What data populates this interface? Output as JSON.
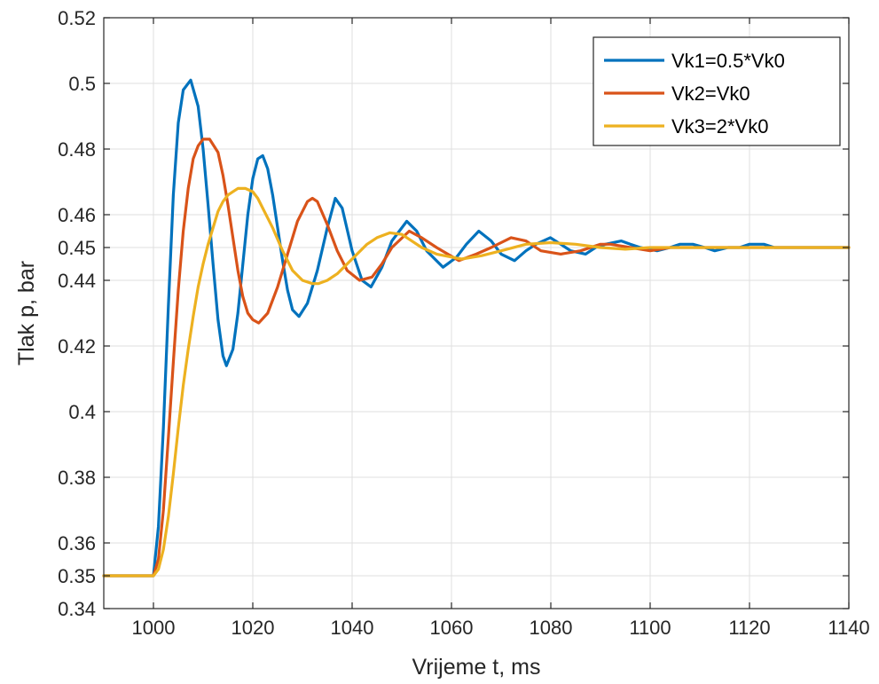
{
  "chart_data": {
    "type": "line",
    "title": "",
    "xlabel": "Vrijeme t, ms",
    "ylabel": "Tlak p, bar",
    "xlim": [
      990,
      1140
    ],
    "ylim": [
      0.34,
      0.52
    ],
    "xticks": [
      1000,
      1020,
      1040,
      1060,
      1080,
      1100,
      1120,
      1140
    ],
    "xtick_labels": [
      "1000",
      "1020",
      "1040",
      "1060",
      "1080",
      "1100",
      "1120",
      "1140"
    ],
    "yticks": [
      0.34,
      0.35,
      0.36,
      0.38,
      0.4,
      0.42,
      0.44,
      0.45,
      0.46,
      0.48,
      0.5,
      0.52
    ],
    "ytick_labels": [
      "0.34",
      "0.35",
      "0.36",
      "0.38",
      "0.4",
      "0.42",
      "0.44",
      "0.45",
      "0.46",
      "0.48",
      "0.5",
      "0.52"
    ],
    "grid": true,
    "legend_position": "top-right",
    "series": [
      {
        "name": "Vk1=0.5*Vk0",
        "color": "#0072BD",
        "x": [
          990,
          1000,
          1001,
          1002,
          1003,
          1004,
          1005,
          1006,
          1007.5,
          1009,
          1010,
          1011,
          1012,
          1013,
          1014,
          1014.7,
          1016,
          1017,
          1018,
          1019,
          1020,
          1021,
          1022,
          1023,
          1024,
          1025,
          1026,
          1027,
          1028,
          1029.3,
          1031,
          1033,
          1035,
          1036.6,
          1038,
          1040,
          1042,
          1043.8,
          1046,
          1048,
          1051,
          1053,
          1055,
          1058.3,
          1061,
          1063,
          1065.5,
          1068,
          1070,
          1072.7,
          1075,
          1077,
          1079.9,
          1082,
          1084,
          1087,
          1089,
          1091,
          1094.2,
          1096,
          1098,
          1101.4,
          1104,
          1106,
          1108.6,
          1111,
          1113,
          1115.7,
          1118,
          1120,
          1122.9,
          1125,
          1127,
          1130,
          1133,
          1136,
          1140
        ],
        "values": [
          0.35,
          0.35,
          0.365,
          0.395,
          0.432,
          0.466,
          0.488,
          0.498,
          0.501,
          0.493,
          0.48,
          0.463,
          0.445,
          0.428,
          0.417,
          0.414,
          0.419,
          0.43,
          0.445,
          0.46,
          0.471,
          0.477,
          0.478,
          0.474,
          0.466,
          0.456,
          0.446,
          0.437,
          0.431,
          0.429,
          0.433,
          0.443,
          0.456,
          0.465,
          0.462,
          0.449,
          0.44,
          0.438,
          0.444,
          0.452,
          0.458,
          0.455,
          0.449,
          0.444,
          0.447,
          0.451,
          0.455,
          0.452,
          0.448,
          0.446,
          0.449,
          0.451,
          0.453,
          0.451,
          0.449,
          0.448,
          0.45,
          0.451,
          0.452,
          0.451,
          0.45,
          0.449,
          0.45,
          0.451,
          0.451,
          0.45,
          0.449,
          0.45,
          0.45,
          0.451,
          0.451,
          0.45,
          0.45,
          0.45,
          0.45,
          0.45,
          0.45
        ]
      },
      {
        "name": "Vk2=Vk0",
        "color": "#D95319",
        "x": [
          990,
          1000,
          1001,
          1002,
          1003,
          1004,
          1005,
          1006,
          1007,
          1008,
          1009,
          1010,
          1011.3,
          1013,
          1014,
          1015,
          1016,
          1017,
          1018,
          1019,
          1020,
          1021.2,
          1023,
          1025,
          1027,
          1029,
          1031,
          1032,
          1033,
          1035,
          1037,
          1039,
          1041.5,
          1044,
          1046,
          1048,
          1051.5,
          1054,
          1057,
          1061.5,
          1065,
          1068,
          1072,
          1075,
          1078,
          1082,
          1086,
          1090,
          1092,
          1096,
          1100,
          1104,
          1108,
          1112,
          1116,
          1120,
          1125,
          1130,
          1140
        ],
        "values": [
          0.35,
          0.35,
          0.355,
          0.37,
          0.392,
          0.415,
          0.437,
          0.455,
          0.468,
          0.477,
          0.481,
          0.483,
          0.483,
          0.479,
          0.472,
          0.463,
          0.453,
          0.443,
          0.435,
          0.43,
          0.428,
          0.427,
          0.43,
          0.438,
          0.448,
          0.458,
          0.464,
          0.465,
          0.464,
          0.457,
          0.449,
          0.443,
          0.44,
          0.441,
          0.445,
          0.45,
          0.455,
          0.453,
          0.45,
          0.446,
          0.448,
          0.45,
          0.453,
          0.452,
          0.449,
          0.448,
          0.449,
          0.451,
          0.451,
          0.45,
          0.449,
          0.45,
          0.45,
          0.45,
          0.45,
          0.45,
          0.45,
          0.45,
          0.45
        ]
      },
      {
        "name": "Vk3=2*Vk0",
        "color": "#EDB120",
        "x": [
          990,
          1000,
          1001,
          1002,
          1003,
          1004,
          1005,
          1006,
          1007,
          1008,
          1009,
          1010,
          1011,
          1012,
          1013,
          1014,
          1015,
          1016,
          1017,
          1018.5,
          1020,
          1021,
          1022,
          1023,
          1024,
          1026,
          1028,
          1030,
          1032,
          1033.2,
          1035,
          1037,
          1039,
          1041,
          1043,
          1045,
          1047.6,
          1050,
          1052,
          1054,
          1057,
          1062,
          1066,
          1070,
          1075,
          1080,
          1085,
          1090,
          1095,
          1100,
          1110,
          1120,
          1130,
          1140
        ],
        "values": [
          0.35,
          0.35,
          0.352,
          0.358,
          0.368,
          0.381,
          0.395,
          0.408,
          0.419,
          0.429,
          0.438,
          0.445,
          0.451,
          0.456,
          0.461,
          0.464,
          0.466,
          0.467,
          0.468,
          0.468,
          0.467,
          0.465,
          0.462,
          0.459,
          0.456,
          0.449,
          0.443,
          0.44,
          0.439,
          0.439,
          0.44,
          0.442,
          0.445,
          0.448,
          0.451,
          0.453,
          0.4545,
          0.454,
          0.452,
          0.45,
          0.448,
          0.4465,
          0.4475,
          0.449,
          0.451,
          0.4515,
          0.451,
          0.45,
          0.4495,
          0.45,
          0.45,
          0.45,
          0.45,
          0.45
        ]
      }
    ]
  }
}
